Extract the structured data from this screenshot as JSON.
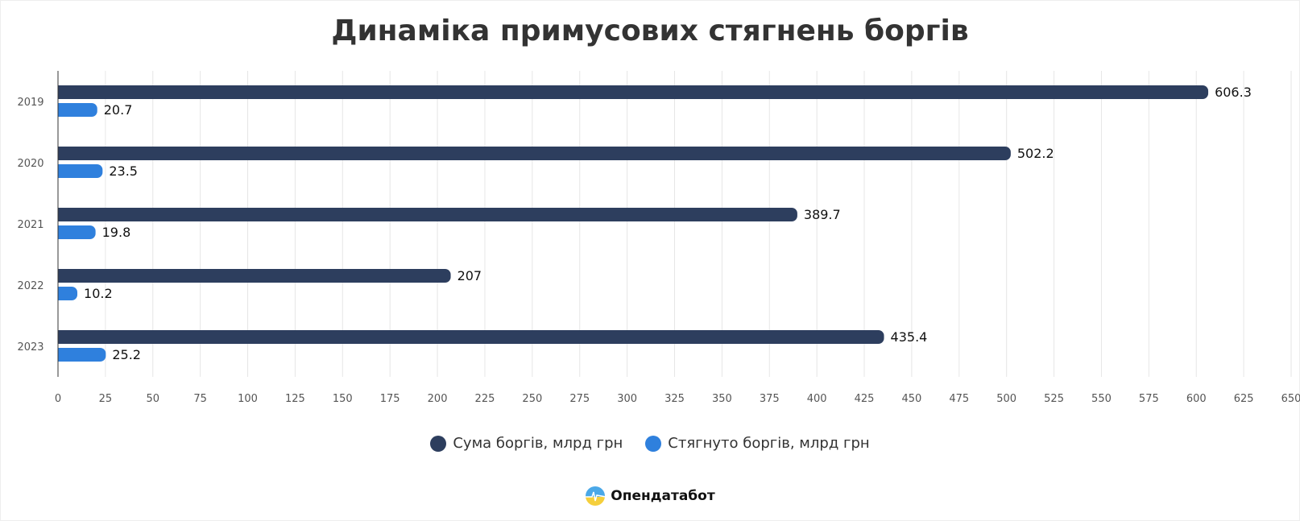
{
  "chart_data": {
    "type": "bar",
    "orientation": "horizontal",
    "title": "Динаміка примусових стягнень боргів",
    "categories": [
      "2019",
      "2020",
      "2021",
      "2022",
      "2023"
    ],
    "series": [
      {
        "name": "Сума боргів, млрд грн",
        "color": "#2d3e5e",
        "values": [
          606.3,
          502.2,
          389.7,
          207,
          435.4
        ],
        "labels": [
          "606.3",
          "502.2",
          "389.7",
          "207",
          "435.4"
        ]
      },
      {
        "name": "Стягнуто боргів, млрд грн",
        "color": "#2f80dd",
        "values": [
          20.7,
          23.5,
          19.8,
          10.2,
          25.2
        ],
        "labels": [
          "20.7",
          "23.5",
          "19.8",
          "10.2",
          "25.2"
        ]
      }
    ],
    "xlim": [
      0,
      650
    ],
    "xticks": [
      "0",
      "25",
      "50",
      "75",
      "100",
      "125",
      "150",
      "175",
      "200",
      "225",
      "250",
      "275",
      "300",
      "325",
      "350",
      "375",
      "400",
      "425",
      "450",
      "475",
      "500",
      "525",
      "550",
      "575",
      "600",
      "625",
      "650"
    ],
    "grid": true,
    "legend_position": "bottom"
  },
  "brand": {
    "name": "Опендатабот"
  }
}
